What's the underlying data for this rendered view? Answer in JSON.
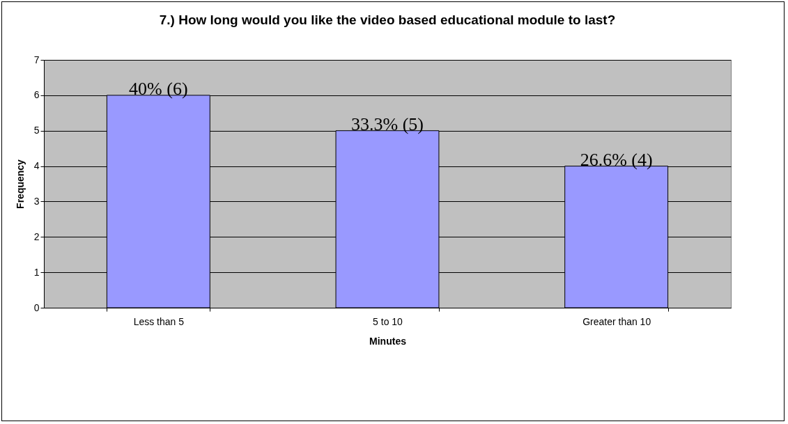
{
  "chart_data": {
    "type": "bar",
    "title": "7.) How long would you like the video based educational module to last?",
    "xlabel": "Minutes",
    "ylabel": "Frequency",
    "categories": [
      "Less than 5",
      "5 to 10",
      "Greater than 10"
    ],
    "values": [
      6,
      5,
      4
    ],
    "value_labels": [
      "40% (6)",
      "33.3% (5)",
      "26.6% (4)"
    ],
    "color": "#9999ff",
    "ylim": [
      0,
      7
    ],
    "yticks": [
      0,
      1,
      2,
      3,
      4,
      5,
      6,
      7
    ],
    "grid": "y"
  }
}
